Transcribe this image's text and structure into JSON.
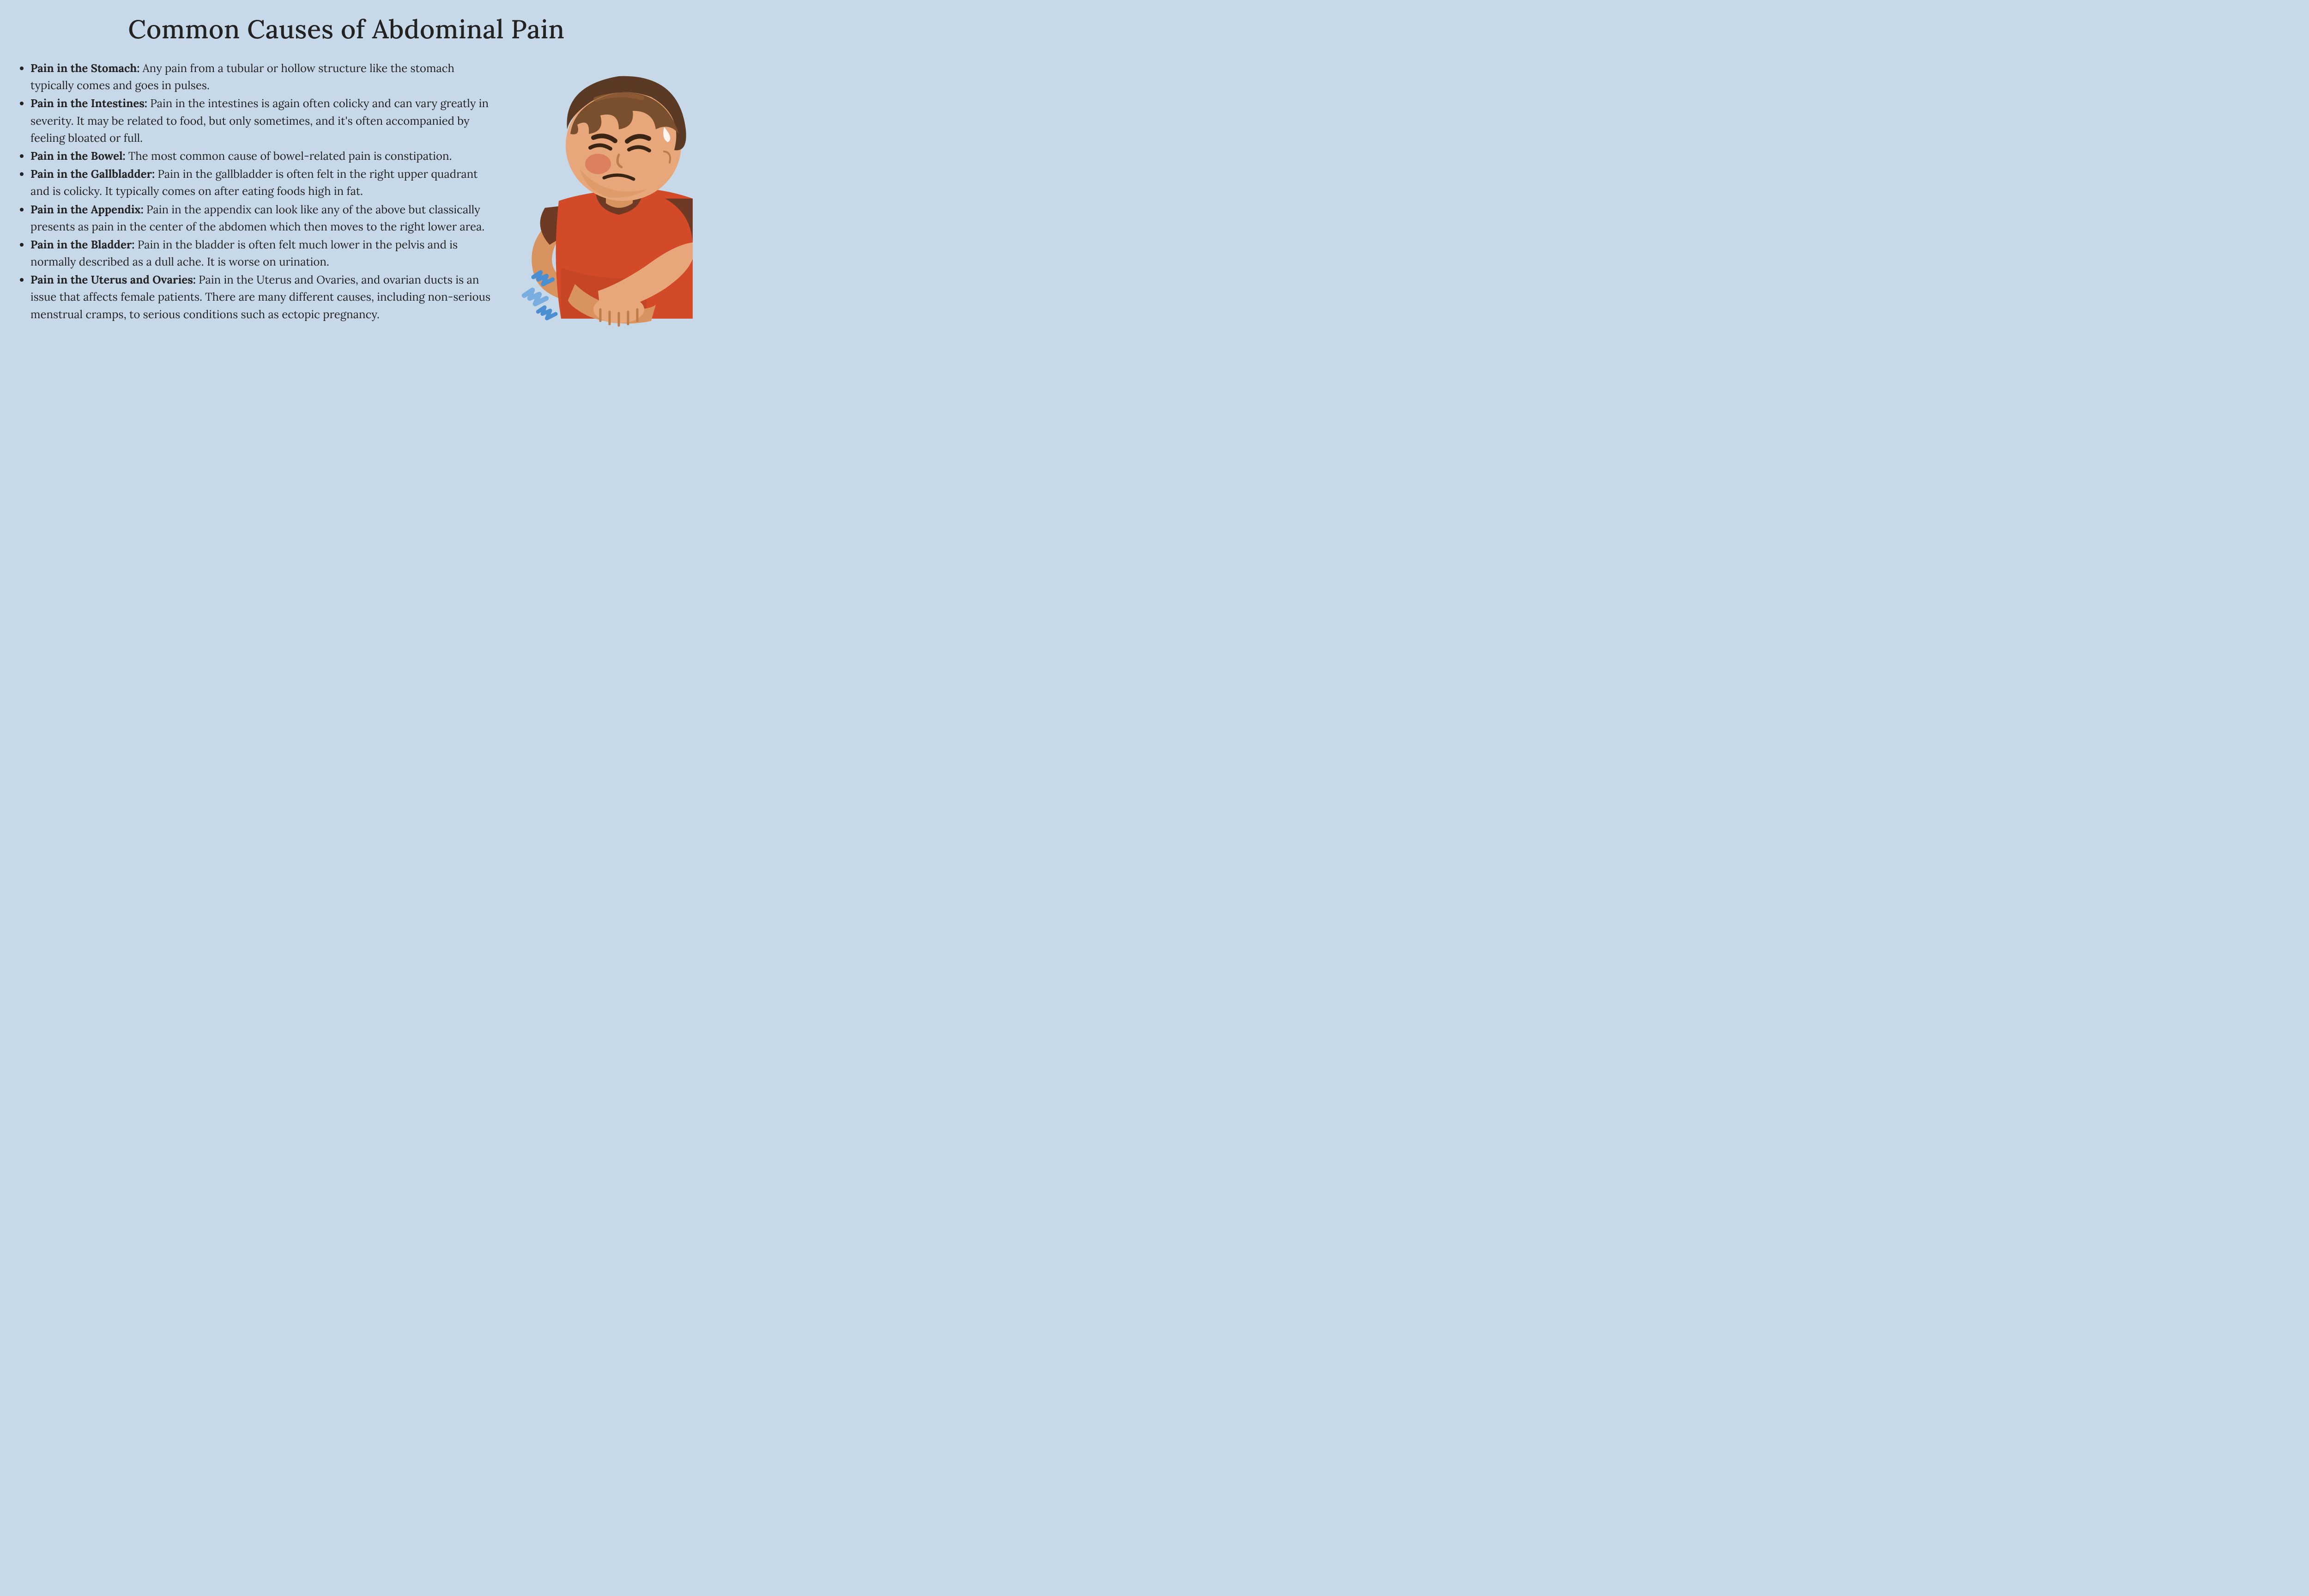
{
  "title": "Common Causes of Abdominal Pain",
  "text_color": "#222222",
  "background_color": "#c7d9e8",
  "title_fontsize": 56,
  "body_fontsize": 24,
  "line_height": 1.55,
  "causes": [
    {
      "label": "Pain in the Stomach:",
      "text": " Any pain from a tubular or hollow structure like the stomach typically comes and goes in pulses."
    },
    {
      "label": "Pain in the Intestines:",
      "text": " Pain in the intestines is again often colicky and can vary greatly in severity. It may be related to food, but only sometimes, and it's often accompanied by feeling bloated or full."
    },
    {
      "label": "Pain in the Bowel:",
      "text": " The most common cause of bowel-related pain is constipation."
    },
    {
      "label": "Pain in the Gallbladder:",
      "text": " Pain in the gallbladder is often felt in the right upper quadrant and is colicky. It typically comes on after eating foods high in fat."
    },
    {
      "label": "Pain in the Appendix:",
      "text": " Pain in the appendix can look like any of the above but classically presents as pain in the center of the abdomen which then moves to the right lower area."
    },
    {
      "label": "Pain in the Bladder:",
      "text": " Pain in the bladder is often felt much lower in the pelvis and is normally described as a dull ache. It is worse on urination."
    },
    {
      "label": "Pain in the Uterus and Ovaries:",
      "text": "  Pain in the Uterus and Ovaries, and ovarian ducts is an issue that affects female patients. There are many different causes, including non-serious menstrual cramps, to serious conditions such as ectopic pregnancy."
    }
  ],
  "illustration": {
    "skin_light": "#e8a77a",
    "skin_mid": "#d8935f",
    "skin_dark": "#c07c48",
    "hair_dark": "#5a3a24",
    "hair_mid": "#7a4f2e",
    "hair_light": "#935f38",
    "shirt_main": "#d24a28",
    "shirt_dark": "#6e3a24",
    "shirt_shadow": "#b23d1f",
    "cheek": "#d9785a",
    "brow": "#3a2414",
    "sweat": "#ffffff",
    "pain_bolt": "#4a8fd1",
    "pain_bolt_light": "#7aaee0"
  }
}
